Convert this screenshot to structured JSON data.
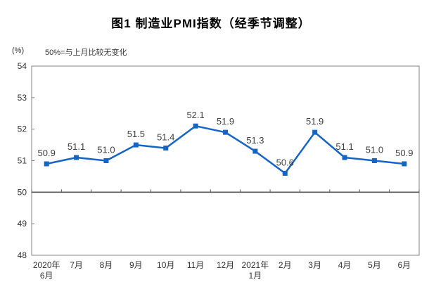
{
  "title": "图1  制造业PMI指数（经季节调整）",
  "unit_label": "(%)",
  "note": "50%=与上月比较无变化",
  "colors": {
    "line": "#1565c8",
    "marker": "#1565c8",
    "baseline": "#595959",
    "plot_border": "#808080",
    "tick_label": "#333333",
    "data_label": "#404040",
    "background": "#ffffff"
  },
  "chart_data": {
    "type": "line",
    "title": "图1  制造业PMI指数（经季节调整）",
    "note": "50%=与上月比较无变化",
    "unit": "(%)",
    "categories": [
      [
        "2020年",
        "6月"
      ],
      [
        "7月"
      ],
      [
        "8月"
      ],
      [
        "9月"
      ],
      [
        "10月"
      ],
      [
        "11月"
      ],
      [
        "12月"
      ],
      [
        "2021年",
        "1月"
      ],
      [
        "2月"
      ],
      [
        "3月"
      ],
      [
        "4月"
      ],
      [
        "5月"
      ],
      [
        "6月"
      ]
    ],
    "series": [
      {
        "name": "制造业PMI",
        "values": [
          50.9,
          51.1,
          51.0,
          51.5,
          51.4,
          52.1,
          51.9,
          51.3,
          50.6,
          51.9,
          51.1,
          51.0,
          50.9
        ]
      }
    ],
    "ylim": [
      48,
      54
    ],
    "ytick_step": 1,
    "baseline": 50,
    "grid": false,
    "legend": "none",
    "data_labels": true,
    "label_decimals": 1
  }
}
